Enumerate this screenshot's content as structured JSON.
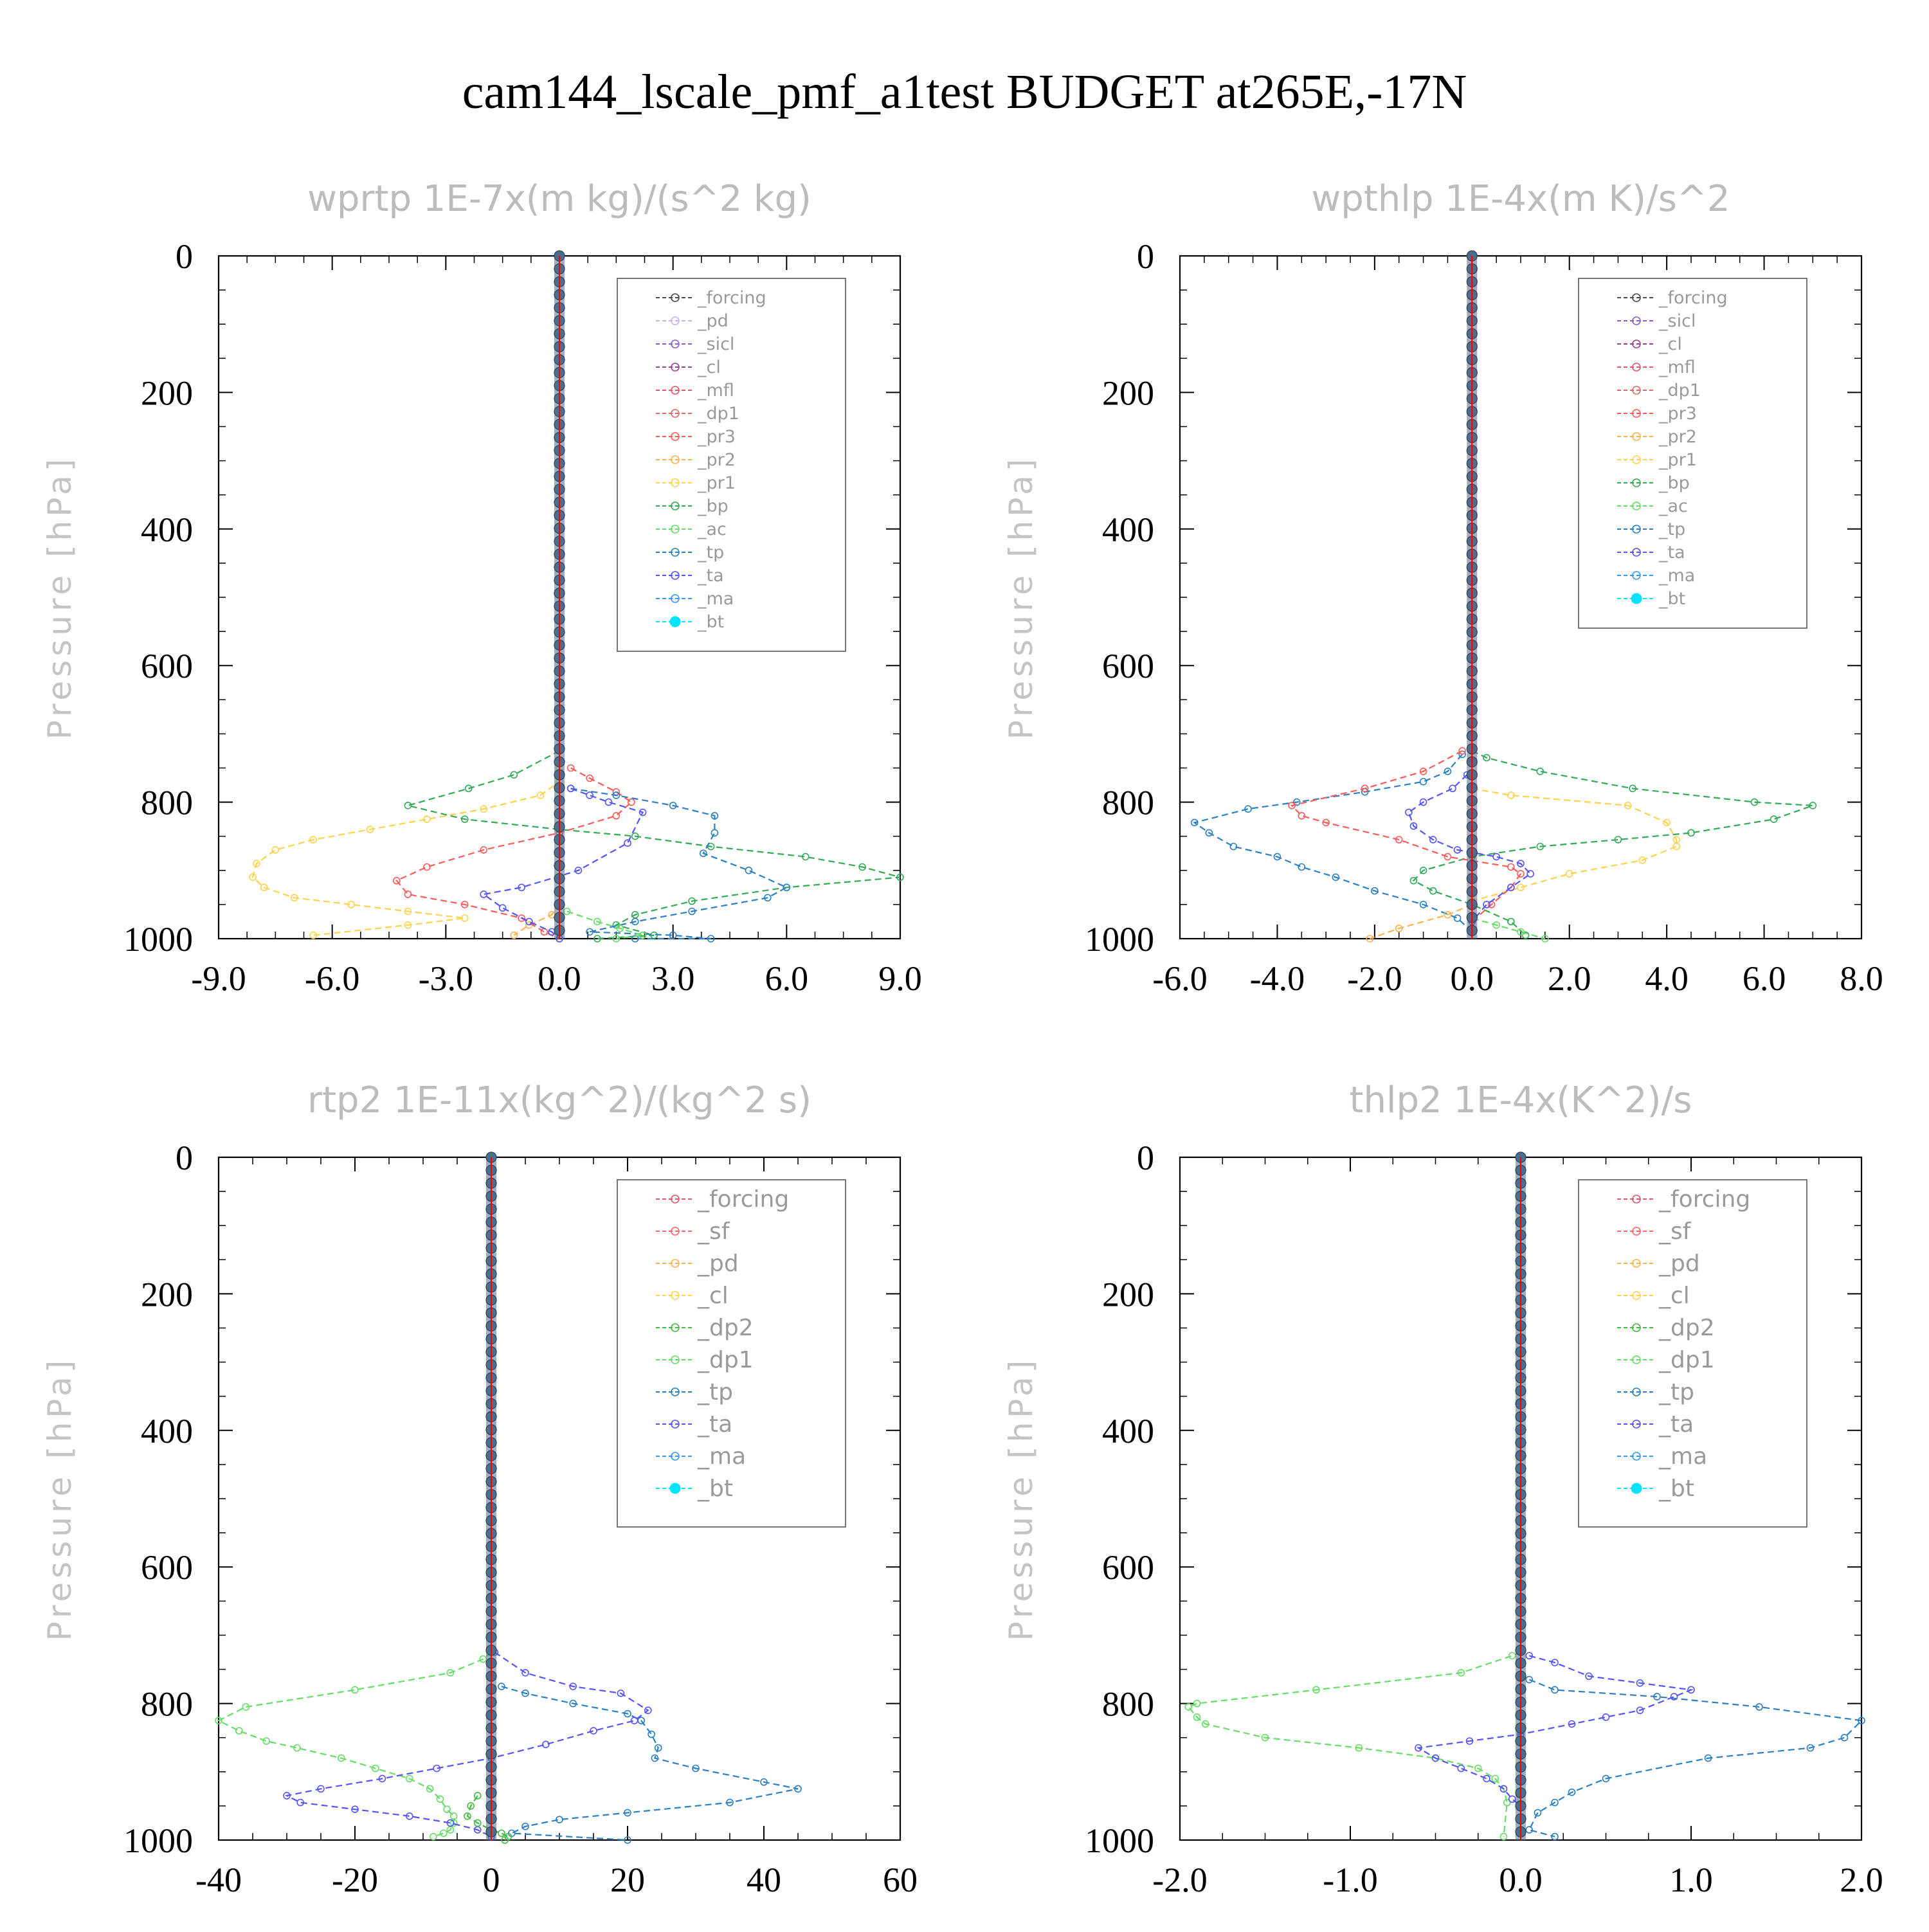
{
  "title": "cam144_lscale_pmf_a1test  BUDGET at265E,-17N",
  "colors": {
    "forcing": "#4a4a4a",
    "pd": "#c7b2f0",
    "sicl": "#8a5cc9",
    "cl": "#9b3f8f",
    "mfl": "#e0566b",
    "dp1": "#e06a6a",
    "pr3": "#ff5a5a",
    "pr2": "#ffb24d",
    "pr1": "#ffd24d",
    "bp": "#33aa55",
    "ac": "#66dd66",
    "tp": "#2b7fc2",
    "ta": "#5555ff",
    "ma": "#3399ff",
    "bt": "#00e5ff",
    "sf": "#ff6666",
    "dp2": "#44bb44",
    "forcing2": "#e0566b",
    "pd2": "#ffb24d",
    "cl2": "#ffd24d",
    "vline": "#ff0000",
    "bar_fill": "#4a6f8f"
  },
  "chart_data": [
    {
      "type": "line",
      "title": "wprtp  1E-7x(m kg)/(s^2 kg)",
      "ylabel": "Pressure [hPa]",
      "xlim": [
        -9,
        9
      ],
      "ylim": [
        1000,
        0
      ],
      "xticks": [
        "-9.0",
        "-6.0",
        "-3.0",
        "0.0",
        "3.0",
        "6.0",
        "9.0"
      ],
      "yticks": [
        "0",
        "200",
        "400",
        "600",
        "800",
        "1000"
      ],
      "legend": [
        "_forcing",
        "_pd",
        "_sicl",
        "_cl",
        "_mfl",
        "_dp1",
        "_pr3",
        "_pr2",
        "_pr1",
        "_bp",
        "_ac",
        "_tp",
        "_ta",
        "_ma",
        "_bt"
      ],
      "series": [
        {
          "name": "_pr1",
          "color": "pr1",
          "x": [
            0,
            0,
            -0.5,
            -2,
            -3.5,
            -5,
            -6.5,
            -7.5,
            -8,
            -8.1,
            -7.8,
            -7,
            -5.5,
            -4,
            -2.5,
            -4,
            -6.5
          ],
          "y": [
            750,
            770,
            790,
            810,
            825,
            840,
            855,
            870,
            890,
            910,
            925,
            940,
            950,
            960,
            970,
            980,
            995
          ]
        },
        {
          "name": "_pr2",
          "color": "pr2",
          "x": [
            0,
            -0.2,
            -0.8,
            -1.2
          ],
          "y": [
            950,
            965,
            980,
            995
          ]
        },
        {
          "name": "_bp",
          "color": "bp",
          "x": [
            0,
            -1.2,
            -2.4,
            -4,
            -2.5,
            0,
            2,
            4,
            6.5,
            8,
            9,
            6,
            3.5,
            2,
            1.5,
            2.5,
            1
          ],
          "y": [
            725,
            760,
            780,
            805,
            825,
            840,
            850,
            865,
            880,
            895,
            910,
            925,
            945,
            965,
            980,
            995,
            1000
          ]
        },
        {
          "name": "_dp1",
          "color": "pr3",
          "x": [
            0.3,
            0.8,
            1.5,
            1.9,
            1.5,
            0,
            -2,
            -3.5,
            -4.3,
            -4,
            -2.5,
            -1,
            -0.4,
            0
          ],
          "y": [
            750,
            765,
            785,
            800,
            820,
            845,
            870,
            895,
            915,
            935,
            950,
            970,
            990,
            1000
          ]
        },
        {
          "name": "_tp",
          "color": "tp",
          "x": [
            0.3,
            1.5,
            3,
            4.1,
            4.1,
            3.8,
            5,
            6,
            5.5,
            3.5,
            2,
            0.8,
            3,
            4,
            2
          ],
          "y": [
            780,
            790,
            805,
            820,
            845,
            875,
            900,
            925,
            940,
            960,
            975,
            990,
            995,
            1000,
            1000
          ]
        },
        {
          "name": "_ta",
          "color": "ta",
          "x": [
            0.3,
            0.8,
            1.3,
            2.2,
            1.8,
            0.5,
            -1,
            -2,
            -1.5,
            -0.8,
            -0.2,
            0
          ],
          "y": [
            780,
            790,
            800,
            815,
            860,
            900,
            925,
            935,
            955,
            975,
            990,
            1000
          ]
        },
        {
          "name": "_ac",
          "color": "ac",
          "x": [
            0.2,
            1,
            1.6,
            2.2,
            1.5
          ],
          "y": [
            960,
            975,
            985,
            995,
            1000
          ]
        }
      ],
      "bar": {
        "x": 0,
        "halfwidth": 0.1
      }
    },
    {
      "type": "line",
      "title": "wpthlp  1E-4x(m K)/s^2",
      "ylabel": "Pressure [hPa]",
      "xlim": [
        -6,
        8
      ],
      "ylim": [
        1000,
        0
      ],
      "xticks": [
        "-6.0",
        "-4.0",
        "-2.0",
        "0.0",
        "2.0",
        "4.0",
        "6.0",
        "8.0"
      ],
      "yticks": [
        "0",
        "200",
        "400",
        "600",
        "800",
        "1000"
      ],
      "legend": [
        "_forcing",
        "_sicl",
        "_cl",
        "_mfl",
        "_dp1",
        "_pr3",
        "_pr2",
        "_pr1",
        "_bp",
        "_ac",
        "_tp",
        "_ta",
        "_ma",
        "_bt"
      ],
      "series": [
        {
          "name": "_bp",
          "color": "bp",
          "x": [
            0,
            0.3,
            1.4,
            3.3,
            5.8,
            7.0,
            6.2,
            4.5,
            3.0,
            1.4,
            0,
            -1.0,
            -1.2,
            -0.8,
            0,
            0.8,
            1.1
          ],
          "y": [
            725,
            735,
            755,
            780,
            800,
            805,
            825,
            845,
            855,
            865,
            880,
            900,
            915,
            930,
            950,
            975,
            995
          ]
        },
        {
          "name": "_pr1",
          "color": "pr1",
          "x": [
            0,
            0.8,
            3.2,
            4,
            4.2,
            4.2,
            3.5,
            2,
            1,
            0
          ],
          "y": [
            780,
            790,
            805,
            830,
            855,
            865,
            885,
            905,
            925,
            945
          ]
        },
        {
          "name": "_tp",
          "color": "tp",
          "x": [
            -0.2,
            -0.5,
            -1,
            -2.2,
            -3.6,
            -4.6,
            -5.7,
            -5.4,
            -4.9,
            -4,
            -3.5,
            -2.8,
            -2,
            -1,
            -0.3,
            0
          ],
          "y": [
            730,
            755,
            770,
            785,
            800,
            810,
            830,
            845,
            865,
            880,
            895,
            910,
            930,
            950,
            970,
            990
          ]
        },
        {
          "name": "_mfl",
          "color": "pr3",
          "x": [
            -0.2,
            -1,
            -2.2,
            -3.7,
            -3.5,
            -3,
            -1.5,
            -0.5,
            0.8,
            1,
            0.8,
            0.4,
            0
          ],
          "y": [
            725,
            755,
            780,
            805,
            820,
            830,
            855,
            880,
            895,
            905,
            925,
            950,
            975
          ]
        },
        {
          "name": "_ta",
          "color": "ta",
          "x": [
            -0.1,
            -0.4,
            -1,
            -1.3,
            -1.2,
            -0.8,
            -0.3,
            0.5,
            1,
            1.2,
            0.8,
            0.3,
            0
          ],
          "y": [
            760,
            780,
            800,
            815,
            835,
            855,
            870,
            880,
            890,
            905,
            925,
            950,
            975
          ]
        },
        {
          "name": "_pr2",
          "color": "pr2",
          "x": [
            0,
            -0.5,
            -1.5,
            -2.1
          ],
          "y": [
            950,
            965,
            985,
            1000
          ]
        },
        {
          "name": "_ac",
          "color": "ac",
          "x": [
            0,
            0.5,
            1,
            1.5
          ],
          "y": [
            970,
            980,
            990,
            1000
          ]
        }
      ],
      "bar": {
        "x": 0,
        "halfwidth": 0.07
      }
    },
    {
      "type": "line",
      "title": "rtp2  1E-11x(kg^2)/(kg^2 s)",
      "ylabel": "Pressure [hPa]",
      "xlim": [
        -40,
        60
      ],
      "ylim": [
        1000,
        0
      ],
      "xticks": [
        "-40",
        "-20",
        "0",
        "20",
        "40",
        "60"
      ],
      "yticks": [
        "0",
        "200",
        "400",
        "600",
        "800",
        "1000"
      ],
      "legend": [
        "_forcing",
        "_sf",
        "_pd",
        "_cl",
        "_dp2",
        "_dp1",
        "_tp",
        "_ta",
        "_ma",
        "_bt"
      ],
      "series": [
        {
          "name": "_dp1",
          "color": "ac",
          "x": [
            0,
            -1.2,
            -6,
            -20,
            -36,
            -40,
            -37,
            -33,
            -28.5,
            -22,
            -17,
            -12,
            -9,
            -7.5,
            -6.5,
            -5.5,
            -5.5,
            -6,
            -7,
            -8.5
          ],
          "y": [
            725,
            735,
            755,
            780,
            805,
            825,
            840,
            855,
            865,
            880,
            895,
            910,
            925,
            940,
            955,
            965,
            975,
            985,
            990,
            995
          ]
        },
        {
          "name": "_tp",
          "color": "tp",
          "x": [
            1.5,
            5,
            12,
            20,
            22,
            23.5,
            24.5,
            24,
            30,
            40,
            45,
            35,
            20,
            10,
            5,
            3,
            20
          ],
          "y": [
            775,
            785,
            800,
            815,
            825,
            845,
            865,
            880,
            895,
            915,
            925,
            945,
            960,
            970,
            980,
            990,
            1000
          ]
        },
        {
          "name": "_ta",
          "color": "ta",
          "x": [
            0.5,
            5,
            12,
            19,
            23,
            21,
            15,
            8,
            0,
            -8,
            -16,
            -25,
            -30,
            -28,
            -20,
            -12,
            -6,
            -2,
            0
          ],
          "y": [
            725,
            755,
            775,
            785,
            810,
            825,
            840,
            860,
            880,
            895,
            910,
            925,
            935,
            945,
            955,
            965,
            975,
            985,
            995
          ]
        },
        {
          "name": "_dp2",
          "color": "dp2",
          "x": [
            -2,
            -3,
            -3.5,
            -2,
            0,
            1.5,
            2.5,
            2
          ],
          "y": [
            935,
            950,
            965,
            975,
            985,
            990,
            995,
            1000
          ]
        }
      ],
      "bar": {
        "x": 0,
        "halfwidth": 0.55
      }
    },
    {
      "type": "line",
      "title": "thlp2  1E-4x(K^2)/s",
      "ylabel": "Pressure [hPa]",
      "xlim": [
        -2,
        2
      ],
      "ylim": [
        1000,
        0
      ],
      "xticks": [
        "-2.0",
        "-1.0",
        "0.0",
        "1.0",
        "2.0"
      ],
      "yticks": [
        "0",
        "200",
        "400",
        "600",
        "800",
        "1000"
      ],
      "legend": [
        "_forcing",
        "_sf",
        "_pd",
        "_cl",
        "_dp2",
        "_dp1",
        "_tp",
        "_ta",
        "_ma",
        "_bt"
      ],
      "series": [
        {
          "name": "_dp1",
          "color": "ac",
          "x": [
            0,
            -0.05,
            -0.35,
            -1.2,
            -1.9,
            -1.95,
            -1.9,
            -1.85,
            -1.5,
            -0.95,
            -0.5,
            -0.25,
            -0.15,
            -0.1,
            -0.08,
            -0.1
          ],
          "y": [
            725,
            730,
            755,
            780,
            800,
            805,
            820,
            830,
            850,
            865,
            880,
            895,
            910,
            925,
            945,
            995
          ]
        },
        {
          "name": "_tp",
          "color": "tp",
          "x": [
            0.05,
            0.2,
            0.8,
            1.4,
            2.0,
            1.9,
            1.7,
            1.1,
            0.5,
            0.3,
            0.2,
            0.1,
            0.05,
            0.2
          ],
          "y": [
            765,
            780,
            790,
            805,
            825,
            850,
            865,
            880,
            910,
            930,
            945,
            960,
            985,
            995
          ]
        },
        {
          "name": "_ta",
          "color": "ta",
          "x": [
            0.05,
            0.2,
            0.4,
            0.7,
            1.0,
            0.9,
            0.7,
            0.5,
            0.3,
            0,
            -0.3,
            -0.6,
            -0.5,
            -0.35,
            -0.2,
            -0.1,
            -0.05,
            0
          ],
          "y": [
            730,
            740,
            760,
            770,
            780,
            790,
            810,
            820,
            830,
            845,
            855,
            865,
            880,
            895,
            910,
            925,
            940,
            950
          ]
        }
      ],
      "bar": {
        "x": 0,
        "halfwidth": 0.02
      }
    }
  ]
}
